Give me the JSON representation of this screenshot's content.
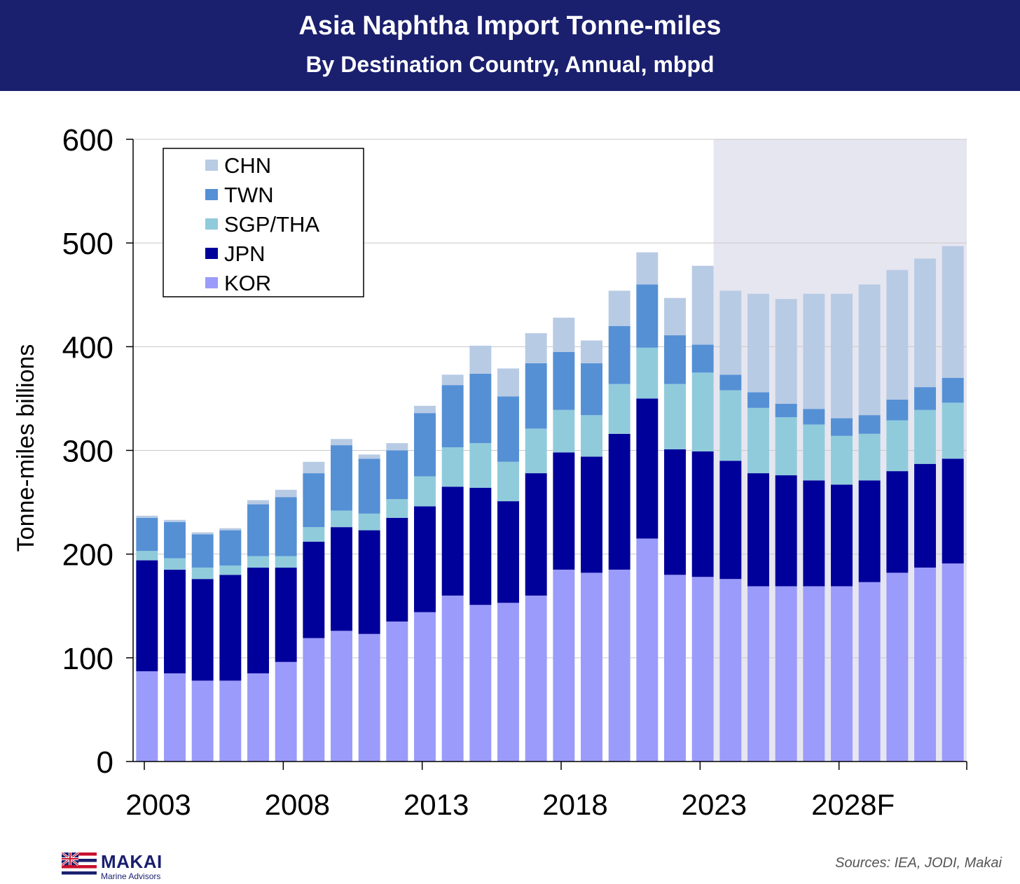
{
  "header": {
    "title": "Asia Naphtha Import Tonne-miles",
    "subtitle": "By Destination Country, Annual, mbpd"
  },
  "footer": {
    "logo_name": "MAKAI",
    "logo_tagline": "Marine Advisors",
    "source": "Sources: IEA,  JODI, Makai"
  },
  "colors": {
    "header_bg": "#1a1f6e",
    "forecast_shade": "#e6e6f0",
    "KOR": "#9b9bfb",
    "JPN": "#00009a",
    "SGP/THA": "#90cbdc",
    "TWN": "#5590d5",
    "CHN": "#b8cbe4"
  },
  "chart_data": {
    "type": "bar",
    "stacked": true,
    "ylabel": "Tonne-miles billions",
    "ylim": [
      0,
      600
    ],
    "yticks": [
      0,
      100,
      200,
      300,
      400,
      500,
      600
    ],
    "grid": true,
    "legend_position": "top-left",
    "forecast_from": 2024,
    "x": [
      2003,
      2004,
      2005,
      2006,
      2007,
      2008,
      2009,
      2010,
      2011,
      2012,
      2013,
      2014,
      2015,
      2016,
      2017,
      2018,
      2019,
      2020,
      2021,
      2022,
      2023,
      2024,
      2025,
      2026,
      2027,
      2028,
      2029,
      2030,
      2031,
      2032
    ],
    "xtick_labels": [
      {
        "x": 2003,
        "label": "2003"
      },
      {
        "x": 2008,
        "label": "2008"
      },
      {
        "x": 2013,
        "label": "2013"
      },
      {
        "x": 2018,
        "label": "2018"
      },
      {
        "x": 2023,
        "label": "2023"
      },
      {
        "x": 2028,
        "label": "2028F"
      }
    ],
    "series": [
      {
        "name": "KOR",
        "values": [
          87,
          85,
          78,
          78,
          85,
          96,
          119,
          126,
          123,
          135,
          144,
          160,
          151,
          153,
          160,
          185,
          182,
          185,
          215,
          180,
          178,
          176,
          169,
          169,
          169,
          169,
          173,
          182,
          187,
          191
        ]
      },
      {
        "name": "JPN",
        "values": [
          107,
          100,
          98,
          102,
          102,
          91,
          93,
          100,
          100,
          100,
          102,
          105,
          113,
          98,
          118,
          113,
          112,
          131,
          135,
          121,
          121,
          114,
          109,
          107,
          102,
          98,
          98,
          98,
          100,
          101
        ]
      },
      {
        "name": "SGP/THA",
        "values": [
          9,
          11,
          11,
          9,
          11,
          11,
          14,
          16,
          16,
          18,
          29,
          38,
          43,
          38,
          43,
          41,
          40,
          48,
          49,
          63,
          76,
          68,
          63,
          56,
          54,
          47,
          45,
          49,
          52,
          54
        ]
      },
      {
        "name": "TWN",
        "values": [
          32,
          35,
          32,
          34,
          50,
          57,
          52,
          63,
          53,
          47,
          61,
          60,
          67,
          63,
          63,
          56,
          50,
          56,
          61,
          47,
          27,
          15,
          15,
          13,
          15,
          17,
          18,
          20,
          22,
          24
        ]
      },
      {
        "name": "CHN",
        "values": [
          2,
          2,
          2,
          2,
          4,
          7,
          11,
          6,
          4,
          7,
          7,
          10,
          27,
          27,
          29,
          33,
          22,
          34,
          31,
          36,
          76,
          81,
          95,
          101,
          111,
          120,
          126,
          125,
          124,
          127
        ]
      }
    ]
  }
}
